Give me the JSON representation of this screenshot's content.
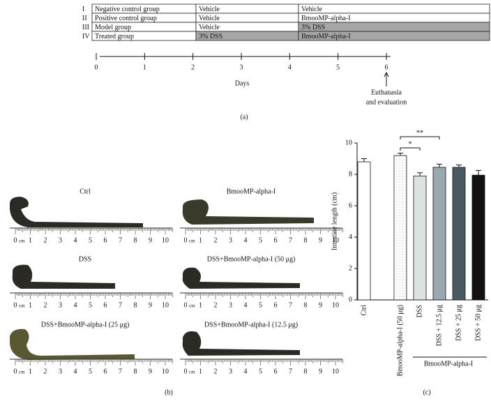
{
  "table": {
    "rows": [
      [
        "I",
        "Negative control group",
        "Vehicle",
        "Vehicle"
      ],
      [
        "II",
        "Positive control group",
        "Vehicle",
        "BmooMP-alpha-I"
      ],
      [
        "III",
        "Model group",
        "Vehicle",
        "3% DSS"
      ],
      [
        "IV",
        "Treated group",
        "3% DSS",
        "BmooMP-alpha-I"
      ]
    ]
  },
  "timeline": {
    "days": [
      0,
      1,
      2,
      3,
      4,
      5,
      6
    ],
    "axis_label": "Days",
    "annotation": [
      "Euthanasia",
      "and evaluation"
    ],
    "panel_label": "(a)"
  },
  "photos": {
    "labels": [
      "Ctrl",
      "BmooMP-alpha-I",
      "DSS",
      "DSS+BmooMP-alpha-I (50 μg)",
      "DSS+BmooMP-alpha-I (25 μg)",
      "DSS+BmooMP-alpha-I (12.5 μg)"
    ],
    "ruler_unit": "cm",
    "ruler_labels": [
      0,
      1,
      2,
      3,
      4,
      5,
      6,
      7,
      8,
      9,
      10
    ],
    "panel_label": "(b)"
  },
  "chart_data": {
    "type": "bar",
    "y_label": "Intestine length (cm)",
    "categories": [
      "Ctrl",
      "BmooMP-alpha-I (50 μg)",
      "DSS",
      "DSS + 12.5 μg",
      "DSS + 25 μg",
      "DSS + 50 μg"
    ],
    "values": [
      8.8,
      9.2,
      7.9,
      8.45,
      8.45,
      7.95
    ],
    "errors": [
      0.2,
      0.15,
      0.2,
      0.2,
      0.15,
      0.3
    ],
    "colors": [
      "#ffffff",
      "#ffffff",
      "#dde3e3",
      "#9aa8b0",
      "#4a5a62",
      "#111111"
    ],
    "ylim": [
      0,
      10
    ],
    "yticks": [
      0,
      2,
      4,
      6,
      8,
      10
    ],
    "significance": [
      "*",
      "**"
    ],
    "group_label": "BmooMP-alpha-I",
    "panel_label": "(c)"
  }
}
